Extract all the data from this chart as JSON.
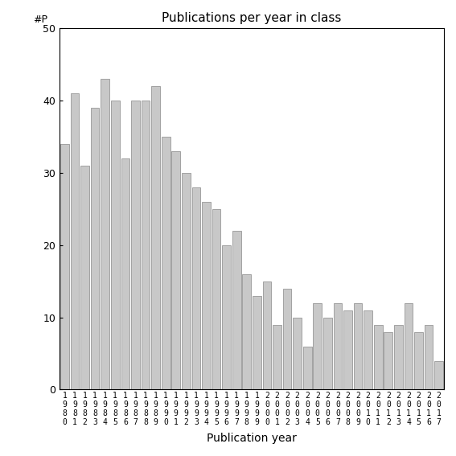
{
  "title": "Publications per year in class",
  "xlabel": "Publication year",
  "ylim": [
    0,
    50
  ],
  "bar_color": "#c8c8c8",
  "bar_edgecolor": "#888888",
  "years": [
    "1980",
    "1981",
    "1982",
    "1983",
    "1984",
    "1985",
    "1986",
    "1987",
    "1988",
    "1989",
    "1990",
    "1991",
    "1992",
    "1993",
    "1994",
    "1995",
    "1996",
    "1997",
    "1998",
    "1999",
    "2000",
    "2001",
    "2002",
    "2003",
    "2004",
    "2005",
    "2006",
    "2007",
    "2008",
    "2009",
    "2010",
    "2011",
    "2012",
    "2013",
    "2014",
    "2015",
    "2016",
    "2017"
  ],
  "values": [
    34,
    41,
    31,
    39,
    43,
    40,
    32,
    40,
    40,
    42,
    35,
    33,
    30,
    28,
    26,
    25,
    20,
    22,
    16,
    13,
    15,
    9,
    14,
    10,
    6,
    12,
    10,
    12,
    11,
    12,
    11,
    9,
    8,
    9,
    12,
    8,
    9,
    4
  ],
  "yticks": [
    0,
    10,
    20,
    30,
    40,
    50
  ]
}
